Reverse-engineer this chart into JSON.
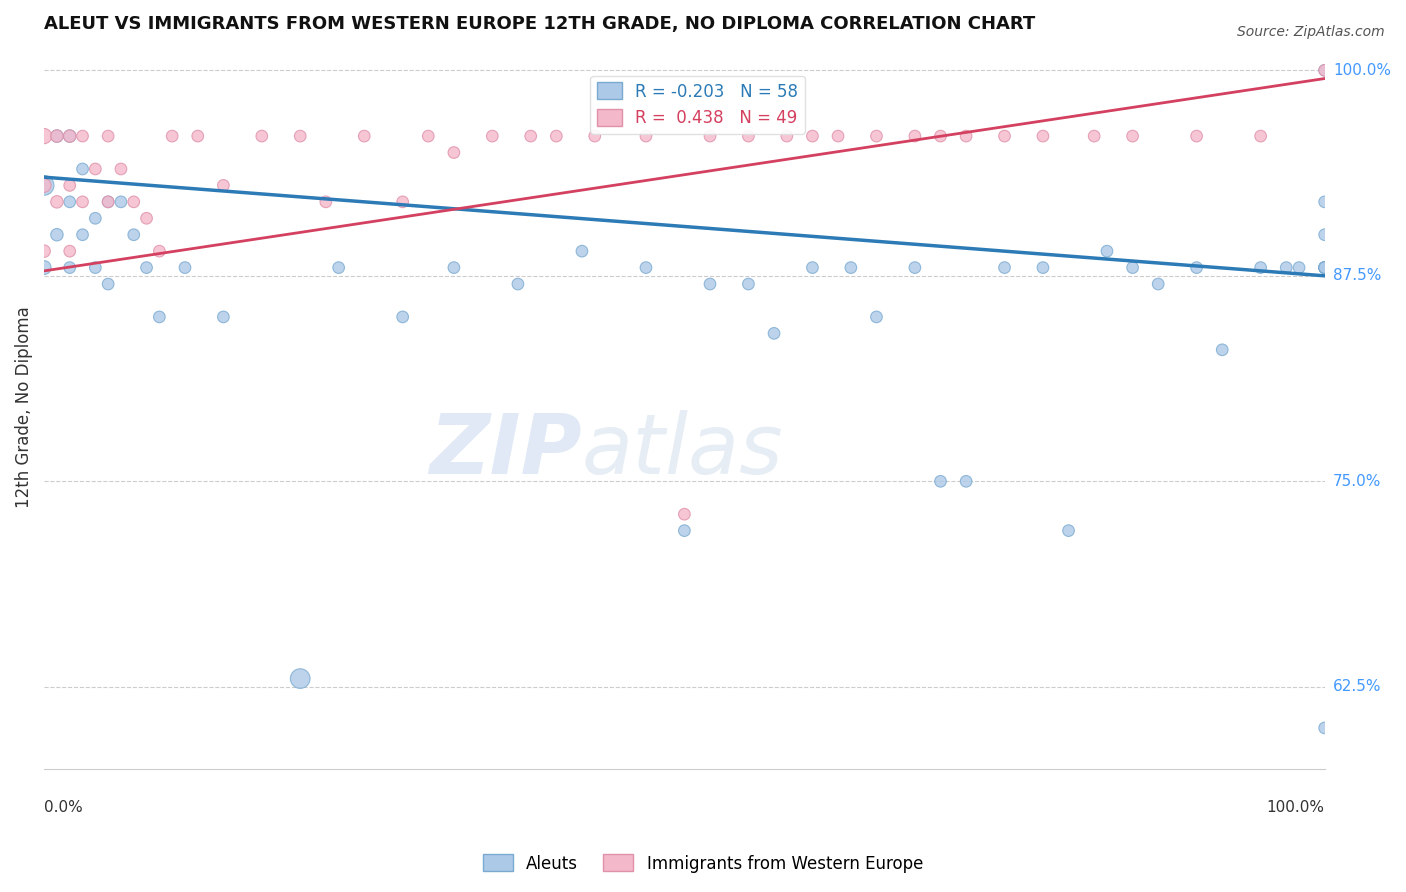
{
  "title": "ALEUT VS IMMIGRANTS FROM WESTERN EUROPE 12TH GRADE, NO DIPLOMA CORRELATION CHART",
  "source": "Source: ZipAtlas.com",
  "ylabel": "12th Grade, No Diploma",
  "xlim": [
    0.0,
    1.0
  ],
  "ylim": [
    0.575,
    1.015
  ],
  "yticks": [
    0.625,
    0.75,
    0.875,
    1.0
  ],
  "ytick_labels": [
    "62.5%",
    "75.0%",
    "87.5%",
    "100.0%"
  ],
  "legend_blue_R": "-0.203",
  "legend_blue_N": "58",
  "legend_pink_R": "0.438",
  "legend_pink_N": "49",
  "blue_scatter_color": "#adc9e8",
  "blue_edge_color": "#7aaad0",
  "pink_scatter_color": "#f4b8cb",
  "pink_edge_color": "#e090a8",
  "blue_line_color": "#2c7bb6",
  "pink_line_color": "#d44060",
  "blue_trend": [
    0.935,
    0.875
  ],
  "pink_trend": [
    0.878,
    0.995
  ],
  "blue_points_x": [
    0.0,
    0.0,
    0.01,
    0.01,
    0.02,
    0.02,
    0.02,
    0.03,
    0.03,
    0.04,
    0.04,
    0.05,
    0.05,
    0.06,
    0.07,
    0.08,
    0.09,
    0.11,
    0.14,
    0.2,
    0.23,
    0.28,
    0.32,
    0.37,
    0.42,
    0.47,
    0.5,
    0.52,
    0.55,
    0.57,
    0.6,
    0.63,
    0.65,
    0.68,
    0.7,
    0.72,
    0.75,
    0.78,
    0.8,
    0.83,
    0.85,
    0.87,
    0.9,
    0.92,
    0.95,
    0.97,
    0.98,
    1.0,
    1.0,
    1.0,
    1.0,
    1.0,
    1.0,
    1.0,
    1.0,
    1.0,
    1.0,
    1.0
  ],
  "blue_points_y": [
    0.93,
    0.88,
    0.96,
    0.9,
    0.96,
    0.92,
    0.88,
    0.94,
    0.9,
    0.91,
    0.88,
    0.92,
    0.87,
    0.92,
    0.9,
    0.88,
    0.85,
    0.88,
    0.85,
    0.63,
    0.88,
    0.85,
    0.88,
    0.87,
    0.89,
    0.88,
    0.72,
    0.87,
    0.87,
    0.84,
    0.88,
    0.88,
    0.85,
    0.88,
    0.75,
    0.75,
    0.88,
    0.88,
    0.72,
    0.89,
    0.88,
    0.87,
    0.88,
    0.83,
    0.88,
    0.88,
    0.88,
    0.88,
    0.88,
    0.9,
    0.88,
    0.92,
    0.88,
    0.88,
    0.88,
    0.88,
    0.6,
    1.0
  ],
  "blue_points_size": [
    200,
    100,
    80,
    80,
    80,
    70,
    70,
    70,
    70,
    70,
    70,
    70,
    70,
    70,
    70,
    70,
    70,
    70,
    70,
    200,
    70,
    70,
    70,
    70,
    70,
    70,
    70,
    70,
    70,
    70,
    70,
    70,
    70,
    70,
    70,
    70,
    70,
    70,
    70,
    70,
    70,
    70,
    70,
    70,
    70,
    70,
    70,
    70,
    70,
    70,
    70,
    70,
    70,
    70,
    70,
    70,
    70,
    70
  ],
  "pink_points_x": [
    0.0,
    0.0,
    0.0,
    0.01,
    0.01,
    0.02,
    0.02,
    0.02,
    0.03,
    0.03,
    0.04,
    0.05,
    0.05,
    0.06,
    0.07,
    0.08,
    0.09,
    0.1,
    0.12,
    0.14,
    0.17,
    0.2,
    0.22,
    0.25,
    0.28,
    0.3,
    0.32,
    0.35,
    0.38,
    0.4,
    0.43,
    0.47,
    0.5,
    0.52,
    0.55,
    0.58,
    0.6,
    0.62,
    0.65,
    0.68,
    0.7,
    0.72,
    0.75,
    0.78,
    0.82,
    0.85,
    0.9,
    0.95,
    1.0
  ],
  "pink_points_y": [
    0.96,
    0.93,
    0.89,
    0.96,
    0.92,
    0.96,
    0.93,
    0.89,
    0.96,
    0.92,
    0.94,
    0.96,
    0.92,
    0.94,
    0.92,
    0.91,
    0.89,
    0.96,
    0.96,
    0.93,
    0.96,
    0.96,
    0.92,
    0.96,
    0.92,
    0.96,
    0.95,
    0.96,
    0.96,
    0.96,
    0.96,
    0.96,
    0.73,
    0.96,
    0.96,
    0.96,
    0.96,
    0.96,
    0.96,
    0.96,
    0.96,
    0.96,
    0.96,
    0.96,
    0.96,
    0.96,
    0.96,
    0.96,
    1.0
  ],
  "pink_points_size": [
    120,
    100,
    80,
    80,
    80,
    80,
    70,
    70,
    70,
    70,
    70,
    70,
    70,
    70,
    70,
    70,
    70,
    70,
    70,
    70,
    70,
    70,
    70,
    70,
    70,
    70,
    70,
    70,
    70,
    70,
    70,
    70,
    70,
    70,
    70,
    70,
    70,
    70,
    70,
    70,
    70,
    70,
    70,
    70,
    70,
    70,
    70,
    70,
    70
  ]
}
